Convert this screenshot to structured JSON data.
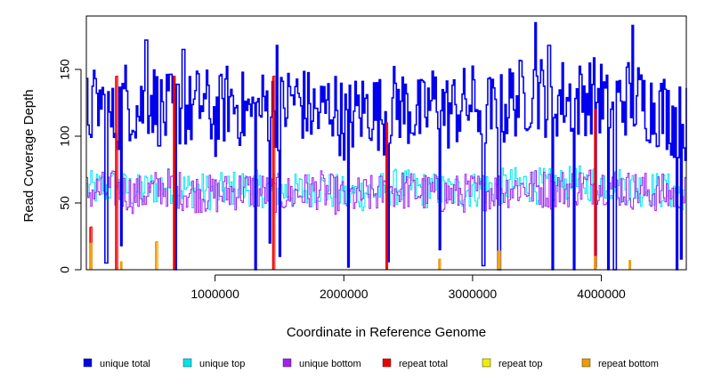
{
  "chart_data": {
    "type": "line",
    "title": "",
    "xlabel": "Coordinate in Reference Genome",
    "ylabel": "Read Coverage Depth",
    "xlim": [
      0,
      4660000
    ],
    "ylim": [
      0,
      190
    ],
    "x_ticks": [
      1000000,
      2000000,
      3000000,
      4000000
    ],
    "x_tick_labels": [
      "1000000",
      "2000000",
      "3000000",
      "4000000"
    ],
    "y_ticks": [
      0,
      50,
      100,
      150
    ],
    "y_tick_labels": [
      "0",
      "50",
      "100",
      "150"
    ],
    "grid": false,
    "legend_position": "bottom",
    "series": [
      {
        "name": "unique total",
        "color": "#0000ee",
        "x": [
          0,
          100000,
          200000,
          300000,
          400000,
          500000,
          600000,
          700000,
          800000,
          900000,
          1000000,
          1100000,
          1200000,
          1300000,
          1400000,
          1500000,
          1600000,
          1700000,
          1800000,
          1900000,
          2000000,
          2100000,
          2200000,
          2300000,
          2400000,
          2500000,
          2600000,
          2700000,
          2800000,
          2900000,
          3000000,
          3100000,
          3200000,
          3300000,
          3400000,
          3500000,
          3600000,
          3700000,
          3800000,
          3900000,
          4000000,
          4100000,
          4200000,
          4300000,
          4400000,
          4500000,
          4600000
        ],
        "values": [
          118,
          125,
          110,
          128,
          120,
          130,
          115,
          122,
          118,
          126,
          112,
          128,
          120,
          115,
          124,
          118,
          130,
          122,
          116,
          125,
          110,
          118,
          122,
          115,
          126,
          120,
          114,
          128,
          118,
          122,
          125,
          120,
          116,
          128,
          130,
          135,
          125,
          130,
          126,
          132,
          128,
          124,
          130,
          126,
          122,
          118,
          110
        ],
        "peaks": [
          [
            460000,
            172
          ],
          [
            750000,
            165
          ],
          [
            1480000,
            168
          ],
          [
            2740000,
            170
          ],
          [
            3480000,
            185
          ],
          [
            3590000,
            168
          ],
          [
            4240000,
            183
          ]
        ],
        "dips": [
          [
            150000,
            5
          ],
          [
            270000,
            18
          ],
          [
            690000,
            0
          ],
          [
            1310000,
            0
          ],
          [
            1420000,
            20
          ],
          [
            1500000,
            10
          ],
          [
            2030000,
            2
          ],
          [
            2340000,
            6
          ],
          [
            2740000,
            15
          ],
          [
            3080000,
            3
          ],
          [
            3200000,
            0
          ],
          [
            3620000,
            0
          ],
          [
            3780000,
            0
          ],
          [
            3950000,
            2
          ],
          [
            4050000,
            0
          ],
          [
            4100000,
            0
          ],
          [
            4580000,
            0
          ],
          [
            4620000,
            8
          ]
        ]
      },
      {
        "name": "unique top",
        "color": "#00e5ee",
        "x": [
          0,
          200000,
          400000,
          600000,
          800000,
          1000000,
          1200000,
          1400000,
          1600000,
          1800000,
          2000000,
          2200000,
          2400000,
          2600000,
          2800000,
          3000000,
          3200000,
          3400000,
          3600000,
          3800000,
          4000000,
          4200000,
          4400000,
          4600000
        ],
        "values": [
          60,
          62,
          58,
          64,
          60,
          58,
          62,
          60,
          58,
          62,
          56,
          58,
          62,
          60,
          58,
          60,
          62,
          64,
          62,
          64,
          66,
          62,
          60,
          58
        ]
      },
      {
        "name": "unique bottom",
        "color": "#a020f0",
        "x": [
          0,
          200000,
          400000,
          600000,
          800000,
          1000000,
          1200000,
          1400000,
          1600000,
          1800000,
          2000000,
          2200000,
          2400000,
          2600000,
          2800000,
          3000000,
          3200000,
          3400000,
          3600000,
          3800000,
          4000000,
          4200000,
          4400000,
          4600000
        ],
        "values": [
          58,
          60,
          56,
          62,
          58,
          56,
          60,
          58,
          56,
          60,
          54,
          56,
          60,
          58,
          56,
          58,
          60,
          62,
          60,
          62,
          64,
          60,
          58,
          56
        ]
      },
      {
        "name": "repeat total",
        "color": "#ee0000",
        "x": [
          0,
          4660000
        ],
        "values": [
          0,
          0
        ],
        "peaks": [
          [
            30000,
            32
          ],
          [
            230000,
            145
          ],
          [
            680000,
            145
          ],
          [
            1450000,
            145
          ],
          [
            2330000,
            110
          ],
          [
            3950000,
            120
          ]
        ]
      },
      {
        "name": "repeat top",
        "color": "#eeee00",
        "x": [
          0,
          4660000
        ],
        "values": [
          0,
          0
        ],
        "peaks": []
      },
      {
        "name": "repeat bottom",
        "color": "#ee9a00",
        "x": [
          0,
          4660000
        ],
        "values": [
          0,
          0
        ],
        "peaks": [
          [
            30000,
            20
          ],
          [
            270000,
            6
          ],
          [
            540000,
            21
          ],
          [
            2740000,
            8
          ],
          [
            3200000,
            14
          ],
          [
            3950000,
            10
          ],
          [
            4220000,
            7
          ]
        ]
      }
    ]
  }
}
